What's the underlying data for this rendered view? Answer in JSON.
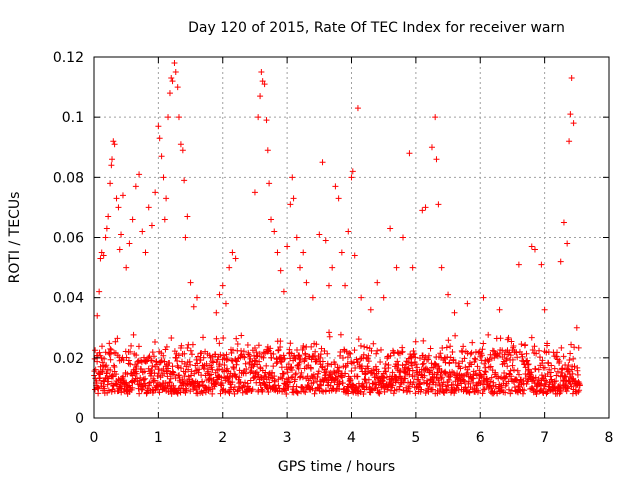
{
  "chart_data": {
    "type": "scatter",
    "title": "Day 120 of 2015, Rate Of TEC Index for receiver warn",
    "xlabel": "GPS time / hours",
    "ylabel": "ROTI / TECUs",
    "xlim": [
      0,
      8
    ],
    "ylim": [
      0,
      0.12
    ],
    "x_ticks": [
      0,
      1,
      2,
      3,
      4,
      5,
      6,
      7,
      8
    ],
    "x_tick_labels": [
      "0",
      "1",
      "2",
      "3",
      "4",
      "5",
      "6",
      "7",
      "8"
    ],
    "y_ticks": [
      0,
      0.02,
      0.04,
      0.06,
      0.08,
      0.1,
      0.12
    ],
    "y_tick_labels": [
      "0",
      "0.02",
      "0.04",
      "0.06",
      "0.08",
      "0.1",
      "0.12"
    ],
    "grid": true,
    "marker": "+",
    "color": "#ff0000",
    "series": [
      {
        "name": "ROTI",
        "x_range": [
          0.0,
          7.55
        ],
        "baseline_range": [
          0.004,
          0.03
        ],
        "points": [
          [
            0.05,
            0.034
          ],
          [
            0.08,
            0.042
          ],
          [
            0.1,
            0.053
          ],
          [
            0.12,
            0.055
          ],
          [
            0.15,
            0.054
          ],
          [
            0.18,
            0.06
          ],
          [
            0.2,
            0.063
          ],
          [
            0.22,
            0.067
          ],
          [
            0.25,
            0.078
          ],
          [
            0.27,
            0.084
          ],
          [
            0.28,
            0.086
          ],
          [
            0.3,
            0.092
          ],
          [
            0.32,
            0.091
          ],
          [
            0.35,
            0.073
          ],
          [
            0.38,
            0.07
          ],
          [
            0.4,
            0.056
          ],
          [
            0.42,
            0.061
          ],
          [
            0.45,
            0.074
          ],
          [
            0.5,
            0.05
          ],
          [
            0.55,
            0.058
          ],
          [
            0.6,
            0.066
          ],
          [
            0.65,
            0.077
          ],
          [
            0.7,
            0.081
          ],
          [
            0.75,
            0.062
          ],
          [
            0.8,
            0.055
          ],
          [
            0.85,
            0.07
          ],
          [
            0.9,
            0.064
          ],
          [
            0.95,
            0.075
          ],
          [
            1.0,
            0.097
          ],
          [
            1.02,
            0.093
          ],
          [
            1.05,
            0.087
          ],
          [
            1.08,
            0.08
          ],
          [
            1.1,
            0.066
          ],
          [
            1.12,
            0.073
          ],
          [
            1.15,
            0.1
          ],
          [
            1.18,
            0.108
          ],
          [
            1.2,
            0.113
          ],
          [
            1.22,
            0.112
          ],
          [
            1.25,
            0.118
          ],
          [
            1.27,
            0.115
          ],
          [
            1.3,
            0.11
          ],
          [
            1.32,
            0.1
          ],
          [
            1.35,
            0.091
          ],
          [
            1.38,
            0.089
          ],
          [
            1.4,
            0.079
          ],
          [
            1.42,
            0.06
          ],
          [
            1.45,
            0.067
          ],
          [
            1.5,
            0.045
          ],
          [
            1.55,
            0.037
          ],
          [
            1.6,
            0.04
          ],
          [
            1.9,
            0.035
          ],
          [
            1.95,
            0.041
          ],
          [
            2.0,
            0.044
          ],
          [
            2.05,
            0.038
          ],
          [
            2.1,
            0.05
          ],
          [
            2.15,
            0.055
          ],
          [
            2.2,
            0.053
          ],
          [
            2.5,
            0.075
          ],
          [
            2.55,
            0.1
          ],
          [
            2.58,
            0.107
          ],
          [
            2.6,
            0.115
          ],
          [
            2.62,
            0.112
          ],
          [
            2.65,
            0.111
          ],
          [
            2.68,
            0.099
          ],
          [
            2.7,
            0.089
          ],
          [
            2.72,
            0.078
          ],
          [
            2.75,
            0.066
          ],
          [
            2.8,
            0.062
          ],
          [
            2.85,
            0.055
          ],
          [
            2.9,
            0.049
          ],
          [
            2.95,
            0.042
          ],
          [
            3.0,
            0.057
          ],
          [
            3.05,
            0.071
          ],
          [
            3.08,
            0.08
          ],
          [
            3.1,
            0.073
          ],
          [
            3.15,
            0.06
          ],
          [
            3.2,
            0.05
          ],
          [
            3.25,
            0.055
          ],
          [
            3.3,
            0.045
          ],
          [
            3.4,
            0.04
          ],
          [
            3.5,
            0.061
          ],
          [
            3.55,
            0.085
          ],
          [
            3.6,
            0.059
          ],
          [
            3.65,
            0.044
          ],
          [
            3.7,
            0.05
          ],
          [
            3.75,
            0.077
          ],
          [
            3.8,
            0.073
          ],
          [
            3.85,
            0.055
          ],
          [
            3.9,
            0.044
          ],
          [
            3.95,
            0.062
          ],
          [
            4.0,
            0.08
          ],
          [
            4.02,
            0.082
          ],
          [
            4.05,
            0.054
          ],
          [
            4.1,
            0.103
          ],
          [
            4.15,
            0.04
          ],
          [
            4.3,
            0.036
          ],
          [
            4.4,
            0.045
          ],
          [
            4.5,
            0.04
          ],
          [
            4.6,
            0.063
          ],
          [
            4.7,
            0.05
          ],
          [
            4.8,
            0.06
          ],
          [
            4.9,
            0.088
          ],
          [
            4.95,
            0.05
          ],
          [
            5.1,
            0.069
          ],
          [
            5.15,
            0.07
          ],
          [
            5.25,
            0.09
          ],
          [
            5.3,
            0.1
          ],
          [
            5.32,
            0.086
          ],
          [
            5.35,
            0.071
          ],
          [
            5.4,
            0.05
          ],
          [
            5.5,
            0.041
          ],
          [
            5.6,
            0.035
          ],
          [
            5.8,
            0.038
          ],
          [
            6.05,
            0.04
          ],
          [
            6.3,
            0.036
          ],
          [
            6.6,
            0.051
          ],
          [
            6.8,
            0.057
          ],
          [
            6.85,
            0.056
          ],
          [
            6.95,
            0.051
          ],
          [
            7.0,
            0.036
          ],
          [
            7.25,
            0.052
          ],
          [
            7.3,
            0.065
          ],
          [
            7.35,
            0.058
          ],
          [
            7.38,
            0.092
          ],
          [
            7.4,
            0.101
          ],
          [
            7.42,
            0.113
          ],
          [
            7.45,
            0.098
          ],
          [
            7.5,
            0.03
          ]
        ]
      }
    ]
  }
}
